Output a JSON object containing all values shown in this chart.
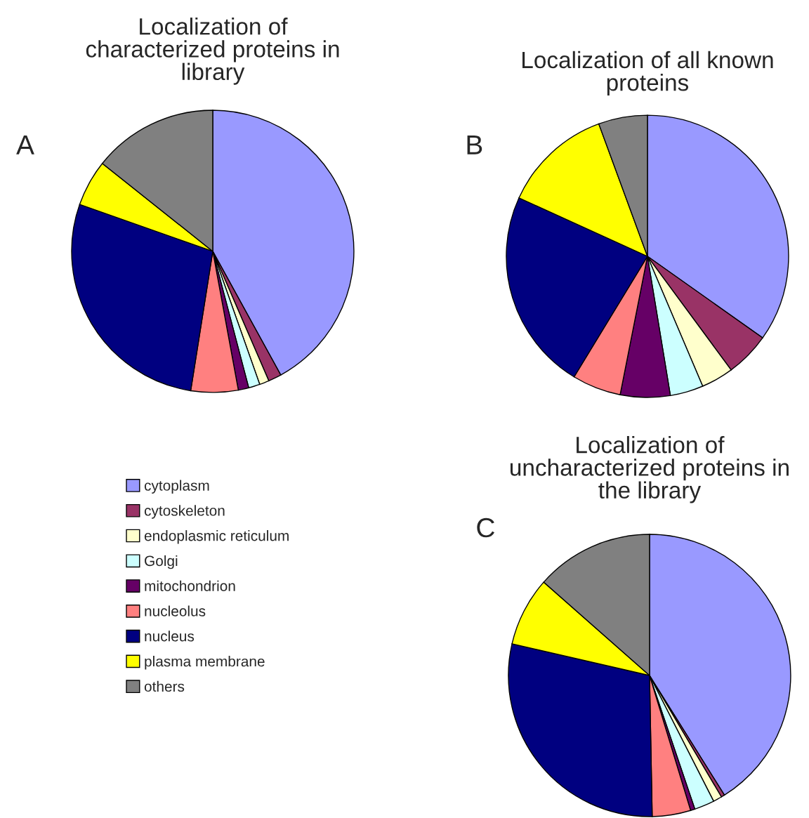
{
  "chart_data": [
    {
      "type": "pie",
      "title": "Localization of\ncharacterized proteins in\nlibrary",
      "annotations": [
        "A"
      ],
      "legend": "bottom",
      "categories": [
        "cytoplasm",
        "cytoskeleton",
        "endoplasmic reticulum",
        "Golgi",
        "mitochondrion",
        "nucleolus",
        "nucleus",
        "plasma membrane",
        "others"
      ],
      "values": [
        42.0,
        1.5,
        1.1,
        1.3,
        1.2,
        5.4,
        27.9,
        5.3,
        14.3
      ],
      "colors": [
        "#9999ff",
        "#993366",
        "#ffffcc",
        "#ccffff",
        "#660066",
        "#ff8080",
        "#000080",
        "#ffff00",
        "#808080"
      ]
    },
    {
      "type": "pie",
      "title": "Localization of all known\nproteins",
      "annotations": [
        "B"
      ],
      "values": [
        34.8,
        5.1,
        3.7,
        3.8,
        5.7,
        5.6,
        23.1,
        12.6,
        5.6
      ],
      "categories": [
        null,
        null,
        null,
        null,
        null,
        null,
        null,
        null,
        null
      ],
      "colors": [
        "#9999ff",
        "#993366",
        "#ffffcc",
        "#ccffff",
        "#660066",
        "#ff8080",
        "#000080",
        "#ffff00",
        "#808080"
      ]
    },
    {
      "type": "pie",
      "title": "Localization of\nuncharacterized proteins in\nthe library",
      "annotations": [
        "C"
      ],
      "values": [
        41.1,
        0.4,
        1.0,
        2.3,
        0.5,
        4.4,
        28.9,
        7.9,
        13.5
      ],
      "categories": [
        null,
        null,
        null,
        null,
        null,
        null,
        null,
        null,
        null
      ],
      "colors": [
        "#9999ff",
        "#993366",
        "#ffffcc",
        "#ccffff",
        "#660066",
        "#ff8080",
        "#000080",
        "#ffff00",
        "#808080"
      ]
    }
  ]
}
